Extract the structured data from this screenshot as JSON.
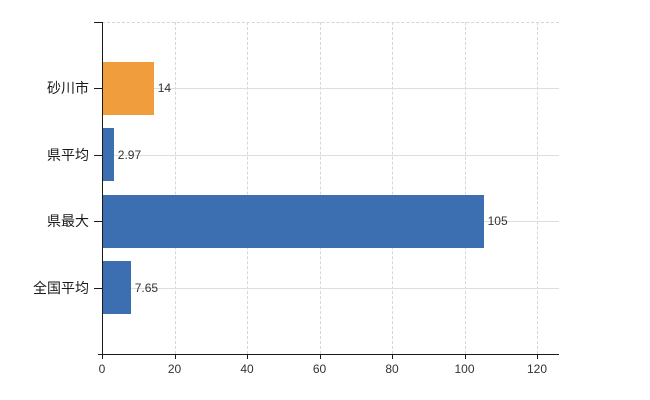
{
  "chart_data": {
    "type": "bar",
    "orientation": "horizontal",
    "categories": [
      "砂川市",
      "県平均",
      "県最大",
      "全国平均"
    ],
    "values": [
      14,
      2.97,
      105,
      7.65
    ],
    "value_labels": [
      "14",
      "2.97",
      "105",
      "7.65"
    ],
    "series": [
      {
        "name": "",
        "values": [
          14,
          2.97,
          105,
          7.65
        ]
      }
    ],
    "bar_colors": [
      "#f09d3d",
      "#3c6fb2",
      "#3c6fb2",
      "#3c6fb2"
    ],
    "xticks": [
      0,
      20,
      40,
      60,
      80,
      100,
      120
    ],
    "xtick_labels": [
      "0",
      "20",
      "40",
      "60",
      "80",
      "100",
      "120"
    ],
    "xlim": [
      0,
      126
    ],
    "grid": true,
    "legend": false,
    "colors": {
      "bar_blue": "#3c6fb2",
      "bar_orange": "#f09d3d",
      "axis": "#1a1a1a",
      "vertical_gridline": "#d6d6d6",
      "horizontal_gridline": "#dbe0db",
      "text": "#333333",
      "background": "#ffffff"
    }
  }
}
